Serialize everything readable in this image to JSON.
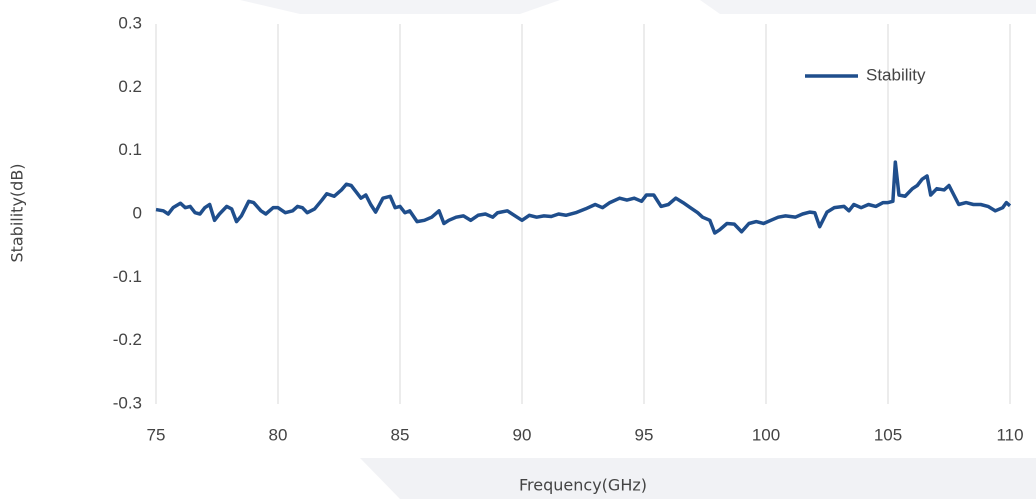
{
  "chart_data": {
    "type": "line",
    "x_label": "Frequency(GHz)",
    "y_label": "Stability(dB)",
    "xlim": [
      75,
      110
    ],
    "xticks": [
      75,
      80,
      85,
      90,
      95,
      100,
      105,
      110
    ],
    "ylim": [
      -0.3,
      0.3
    ],
    "yticks": [
      0.3,
      0.2,
      0.1,
      0,
      -0.1,
      -0.2,
      -0.3
    ],
    "grid": true,
    "legend": "upper right",
    "x": [
      75.0,
      75.3,
      75.5,
      75.7,
      76.0,
      76.2,
      76.4,
      76.6,
      76.8,
      77.0,
      77.2,
      77.4,
      77.6,
      77.9,
      78.1,
      78.3,
      78.5,
      78.8,
      79.0,
      79.3,
      79.5,
      79.8,
      80.0,
      80.3,
      80.6,
      80.8,
      81.0,
      81.2,
      81.5,
      81.8,
      82.0,
      82.3,
      82.6,
      82.8,
      83.0,
      83.2,
      83.4,
      83.6,
      83.8,
      84.0,
      84.3,
      84.6,
      84.8,
      85.0,
      85.2,
      85.4,
      85.7,
      86.0,
      86.3,
      86.6,
      86.8,
      87.0,
      87.3,
      87.6,
      87.9,
      88.2,
      88.5,
      88.8,
      89.0,
      89.4,
      89.8,
      90.0,
      90.3,
      90.6,
      90.9,
      91.2,
      91.5,
      91.8,
      92.2,
      92.6,
      93.0,
      93.3,
      93.6,
      94.0,
      94.3,
      94.6,
      94.9,
      95.1,
      95.4,
      95.7,
      96.0,
      96.3,
      96.6,
      96.9,
      97.2,
      97.4,
      97.7,
      97.9,
      98.1,
      98.4,
      98.7,
      99.0,
      99.3,
      99.6,
      99.9,
      100.2,
      100.5,
      100.8,
      101.2,
      101.5,
      101.8,
      102.0,
      102.2,
      102.5,
      102.8,
      103.2,
      103.4,
      103.6,
      103.9,
      104.2,
      104.5,
      104.8,
      105.0,
      105.2,
      105.3,
      105.45,
      105.7,
      106.0,
      106.2,
      106.4,
      106.6,
      106.75,
      107.0,
      107.3,
      107.5,
      107.7,
      107.9,
      108.2,
      108.5,
      108.8,
      109.1,
      109.4,
      109.7,
      109.85,
      110.0
    ],
    "series": [
      {
        "name": "Stability",
        "color": "#1f4e8c",
        "values": [
          0.007,
          0.005,
          0.0,
          0.01,
          0.017,
          0.01,
          0.012,
          0.002,
          0.0,
          0.01,
          0.015,
          -0.01,
          0.0,
          0.012,
          0.008,
          -0.012,
          -0.003,
          0.02,
          0.018,
          0.005,
          0.0,
          0.01,
          0.01,
          0.002,
          0.005,
          0.012,
          0.01,
          0.002,
          0.008,
          0.022,
          0.032,
          0.028,
          0.038,
          0.047,
          0.045,
          0.035,
          0.025,
          0.03,
          0.015,
          0.003,
          0.025,
          0.028,
          0.01,
          0.012,
          0.002,
          0.005,
          -0.012,
          -0.01,
          -0.005,
          0.005,
          -0.015,
          -0.01,
          -0.005,
          -0.003,
          -0.01,
          -0.002,
          0.0,
          -0.005,
          0.002,
          0.005,
          -0.005,
          -0.01,
          -0.002,
          -0.005,
          -0.003,
          -0.004,
          0.0,
          -0.002,
          0.002,
          0.008,
          0.015,
          0.01,
          0.018,
          0.025,
          0.022,
          0.025,
          0.02,
          0.03,
          0.03,
          0.012,
          0.015,
          0.025,
          0.018,
          0.01,
          0.002,
          -0.005,
          -0.01,
          -0.03,
          -0.025,
          -0.015,
          -0.016,
          -0.028,
          -0.015,
          -0.012,
          -0.015,
          -0.01,
          -0.005,
          -0.003,
          -0.005,
          0.0,
          0.003,
          0.002,
          -0.02,
          0.003,
          0.01,
          0.012,
          0.005,
          0.015,
          0.01,
          0.015,
          0.012,
          0.018,
          0.018,
          0.02,
          0.082,
          0.03,
          0.028,
          0.04,
          0.045,
          0.055,
          0.06,
          0.03,
          0.04,
          0.038,
          0.045,
          0.03,
          0.015,
          0.018,
          0.015,
          0.015,
          0.012,
          0.005,
          0.01,
          0.018,
          0.013
        ]
      }
    ]
  }
}
